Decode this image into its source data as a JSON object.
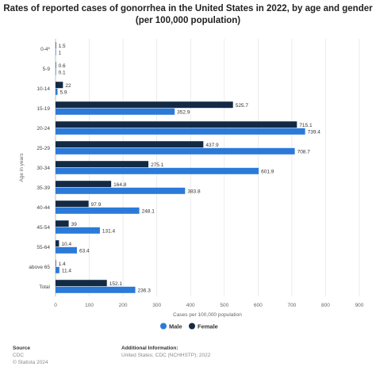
{
  "title_line1": "Rates of reported cases of gonorrhea in the United States in 2022, by age and gender",
  "title_line2": "(per 100,000 population)",
  "chart_data": {
    "type": "bar",
    "orientation": "horizontal",
    "categories": [
      "0-4*",
      "5-9",
      "10-14",
      "15-19",
      "20-24",
      "25-29",
      "30-34",
      "35-39",
      "40-44",
      "45-54",
      "55-64",
      "above 65",
      "Total"
    ],
    "series": [
      {
        "name": "Female",
        "color": "#132a45",
        "values": [
          1.5,
          0.6,
          22,
          525.7,
          715.1,
          437.9,
          275.1,
          164.8,
          97.9,
          39,
          10.4,
          1.4,
          152.1
        ]
      },
      {
        "name": "Male",
        "color": "#2b7ad9",
        "values": [
          1,
          0.1,
          5.9,
          352.9,
          739.4,
          708.7,
          601.9,
          383.8,
          248.1,
          131.4,
          63.4,
          11.4,
          236.3
        ]
      }
    ],
    "value_labels": {
      "Female": [
        "1.5",
        "0.6",
        "22",
        "525.7",
        "715.1",
        "437.9",
        "275.1",
        "164.8",
        "97.9",
        "39",
        "10.4",
        "1.4",
        "152.1"
      ],
      "Male": [
        "1",
        "0.1",
        "5.9",
        "352.9",
        "739.4",
        "708.7",
        "601.9",
        "383.8",
        "248.1",
        "131.4",
        "63.4",
        "11.4",
        "236.3"
      ]
    },
    "xlabel": "Cases per 100,000 population",
    "ylabel": "Age in years",
    "xlim": [
      0,
      900
    ],
    "xticks": [
      0,
      100,
      200,
      300,
      400,
      500,
      600,
      700,
      800,
      900
    ],
    "grid": true,
    "legend": {
      "placement": "bottom-center",
      "items": [
        "Male",
        "Female"
      ]
    }
  },
  "footer": {
    "source_heading": "Source",
    "source_name": "CDC",
    "copyright": "© Statista 2024",
    "info_heading": "Additional Information:",
    "info_text": "United States; CDC (NCHHSTP); 2022"
  }
}
